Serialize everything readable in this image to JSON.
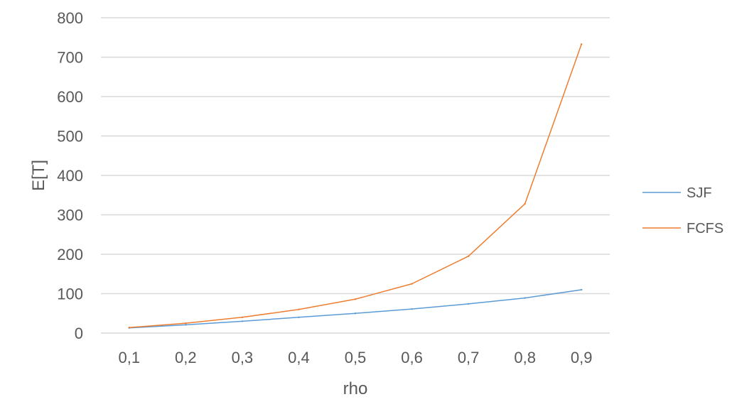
{
  "chart_data": {
    "type": "line",
    "title": "",
    "xlabel": "rho",
    "ylabel": "E[T]",
    "categories": [
      "0,1",
      "0,2",
      "0,3",
      "0,4",
      "0,5",
      "0,6",
      "0,7",
      "0,8",
      "0,9"
    ],
    "ylim": [
      0,
      800
    ],
    "yticks": [
      0,
      100,
      200,
      300,
      400,
      500,
      600,
      700,
      800
    ],
    "grid": true,
    "legend_position": "right",
    "series": [
      {
        "name": "SJF",
        "color": "#5B9BD5",
        "values": [
          13,
          21,
          30,
          40,
          50,
          61,
          74,
          89,
          110
        ]
      },
      {
        "name": "FCFS",
        "color": "#ED7D31",
        "values": [
          14,
          25,
          40,
          60,
          86,
          125,
          195,
          328,
          733
        ]
      }
    ]
  }
}
